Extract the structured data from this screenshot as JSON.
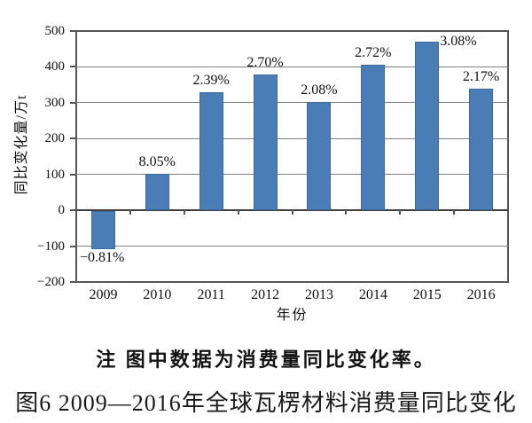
{
  "figure": {
    "note": "注  图中数据为消费量同比变化率。",
    "caption": "图6  2009—2016年全球瓦楞材料消费量同比变化"
  },
  "chart_data": {
    "type": "bar",
    "title": "",
    "xlabel": "年份",
    "ylabel": "同比变化量/万t",
    "categories": [
      "2009",
      "2010",
      "2011",
      "2012",
      "2013",
      "2014",
      "2015",
      "2016"
    ],
    "values": [
      -105,
      102,
      330,
      380,
      303,
      405,
      470,
      340
    ],
    "point_labels": [
      "−0.81%",
      "8.05%",
      "2.39%",
      "2.70%",
      "2.08%",
      "2.72%",
      "3.08%",
      "2.17%"
    ],
    "ylim": [
      -200,
      500
    ],
    "ytick_step": 100,
    "grid": true,
    "legend": "none",
    "bar_color": "#4a7cb5"
  }
}
